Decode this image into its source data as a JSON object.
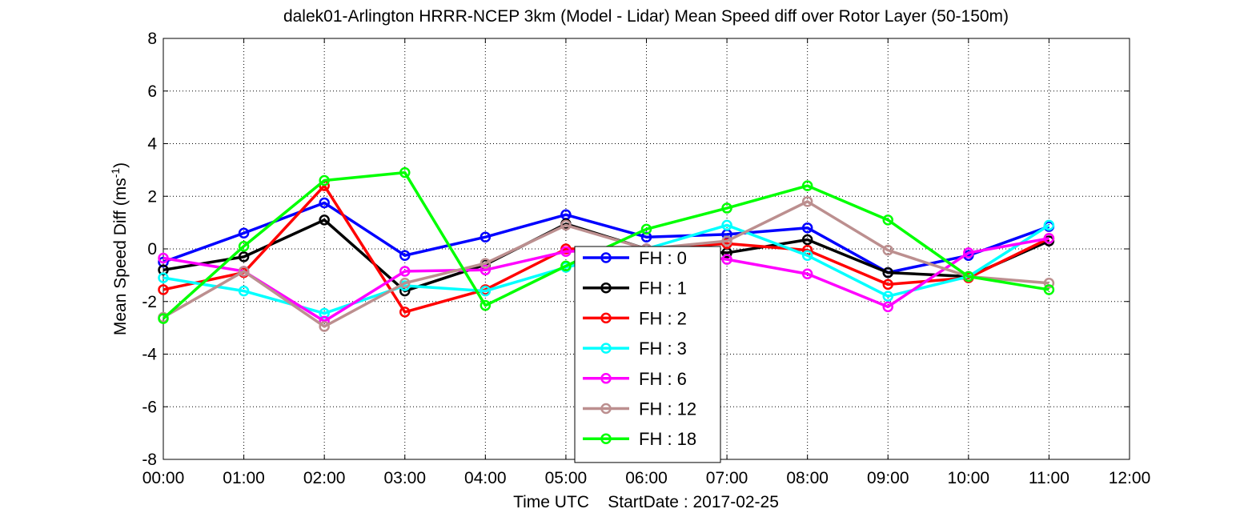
{
  "chart_data": {
    "type": "line",
    "title": "dalek01-Arlington HRRR-NCEP 3km (Model - Lidar) Mean Speed diff over Rotor Layer (50-150m)",
    "ylabel_main": "Mean Speed Diff (ms",
    "ylabel_sup": "-1",
    "ylabel_close": ")",
    "xlabel": "Time UTC    StartDate : 2017-02-25",
    "x_ticks": [
      "00:00",
      "01:00",
      "02:00",
      "03:00",
      "04:00",
      "05:00",
      "06:00",
      "07:00",
      "08:00",
      "09:00",
      "10:00",
      "11:00",
      "12:00"
    ],
    "y_ticks": [
      "-8",
      "-6",
      "-4",
      "-2",
      "0",
      "2",
      "4",
      "6",
      "8"
    ],
    "xlim": [
      0,
      12
    ],
    "ylim": [
      -8,
      8
    ],
    "grid": true,
    "legend_position": "bottom-center",
    "x": [
      0,
      1,
      2,
      3,
      4,
      5,
      6,
      7,
      8,
      9,
      10,
      11
    ],
    "series": [
      {
        "name": "FH : 0",
        "color": "#0000ff",
        "values": [
          -0.5,
          0.6,
          1.75,
          -0.25,
          0.45,
          1.3,
          0.45,
          0.55,
          0.8,
          -0.9,
          -0.25,
          0.85
        ]
      },
      {
        "name": "FH : 1",
        "color": "#000000",
        "values": [
          -0.8,
          -0.3,
          1.1,
          -1.6,
          -0.6,
          0.95,
          0.0,
          -0.15,
          0.35,
          -0.9,
          -1.05,
          0.3
        ]
      },
      {
        "name": "FH : 2",
        "color": "#ff0000",
        "values": [
          -1.55,
          -0.9,
          2.4,
          -2.4,
          -1.55,
          0.0,
          0.0,
          0.2,
          -0.05,
          -1.35,
          -1.1,
          0.4
        ]
      },
      {
        "name": "FH : 3",
        "color": "#00ffff",
        "values": [
          -1.1,
          -1.6,
          -2.45,
          -1.4,
          -1.6,
          -0.7,
          0.0,
          0.9,
          -0.25,
          -1.8,
          -1.05,
          0.9
        ]
      },
      {
        "name": "FH : 6",
        "color": "#ff00ff",
        "values": [
          -0.35,
          -0.85,
          -2.75,
          -0.85,
          -0.8,
          -0.1,
          0.0,
          -0.4,
          -0.95,
          -2.2,
          -0.15,
          0.4
        ]
      },
      {
        "name": "FH : 12",
        "color": "#bc8f8f",
        "values": [
          -2.6,
          -0.85,
          -2.95,
          -1.3,
          -0.55,
          0.9,
          0.0,
          0.3,
          1.8,
          -0.05,
          -1.05,
          -1.3
        ]
      },
      {
        "name": "FH : 18",
        "color": "#00ff00",
        "values": [
          -2.65,
          0.1,
          2.6,
          2.9,
          -2.15,
          -0.65,
          0.75,
          1.55,
          2.4,
          1.1,
          -1.05,
          -1.55
        ]
      }
    ]
  }
}
